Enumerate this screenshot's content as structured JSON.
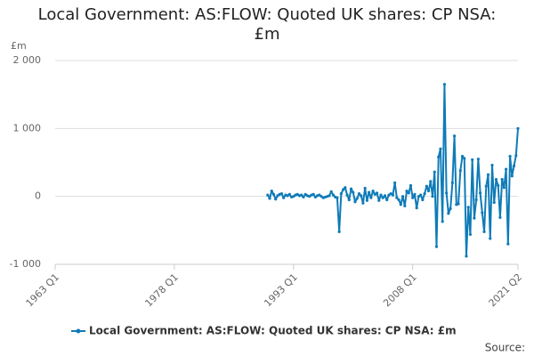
{
  "chart_data": {
    "type": "line",
    "title": "Local Government: AS:FLOW: Quoted UK shares: CP NSA: £m",
    "y_label": "£m",
    "source": "Source:",
    "x": [
      "1989 Q4",
      "1990 Q1",
      "1990 Q2",
      "1990 Q3",
      "1990 Q4",
      "1991 Q1",
      "1991 Q2",
      "1991 Q3",
      "1991 Q4",
      "1992 Q1",
      "1992 Q2",
      "1992 Q3",
      "1992 Q4",
      "1993 Q1",
      "1993 Q2",
      "1993 Q3",
      "1993 Q4",
      "1994 Q1",
      "1994 Q2",
      "1994 Q3",
      "1994 Q4",
      "1995 Q1",
      "1995 Q2",
      "1995 Q3",
      "1995 Q4",
      "1996 Q1",
      "1996 Q2",
      "1996 Q3",
      "1996 Q4",
      "1997 Q1",
      "1997 Q2",
      "1997 Q3",
      "1997 Q4",
      "1998 Q1",
      "1998 Q2",
      "1998 Q3",
      "1998 Q4",
      "1999 Q1",
      "1999 Q2",
      "1999 Q3",
      "1999 Q4",
      "2000 Q1",
      "2000 Q2",
      "2000 Q3",
      "2000 Q4",
      "2001 Q1",
      "2001 Q2",
      "2001 Q3",
      "2001 Q4",
      "2002 Q1",
      "2002 Q2",
      "2002 Q3",
      "2002 Q4",
      "2003 Q1",
      "2003 Q2",
      "2003 Q3",
      "2003 Q4",
      "2004 Q1",
      "2004 Q2",
      "2004 Q3",
      "2004 Q4",
      "2005 Q1",
      "2005 Q2",
      "2005 Q3",
      "2005 Q4",
      "2006 Q1",
      "2006 Q2",
      "2006 Q3",
      "2006 Q4",
      "2007 Q1",
      "2007 Q2",
      "2007 Q3",
      "2007 Q4",
      "2008 Q1",
      "2008 Q2",
      "2008 Q3",
      "2008 Q4",
      "2009 Q1",
      "2009 Q2",
      "2009 Q3",
      "2009 Q4",
      "2010 Q1",
      "2010 Q2",
      "2010 Q3",
      "2010 Q4",
      "2011 Q1",
      "2011 Q2",
      "2011 Q3",
      "2011 Q4",
      "2012 Q1",
      "2012 Q2",
      "2012 Q3",
      "2012 Q4",
      "2013 Q1",
      "2013 Q2",
      "2013 Q3",
      "2013 Q4",
      "2014 Q1",
      "2014 Q2",
      "2014 Q3",
      "2014 Q4",
      "2015 Q1",
      "2015 Q2",
      "2015 Q3",
      "2015 Q4",
      "2016 Q1",
      "2016 Q2",
      "2016 Q3",
      "2016 Q4",
      "2017 Q1",
      "2017 Q2",
      "2017 Q3",
      "2017 Q4",
      "2018 Q1",
      "2018 Q2",
      "2018 Q3",
      "2018 Q4",
      "2019 Q1",
      "2019 Q2",
      "2019 Q3",
      "2019 Q4",
      "2020 Q1",
      "2020 Q2",
      "2020 Q3",
      "2020 Q4",
      "2021 Q1",
      "2021 Q2"
    ],
    "series": [
      {
        "name": "Local Government: AS:FLOW: Quoted UK shares: CP NSA: £m",
        "color": "#0f7bb8",
        "values": [
          20,
          -30,
          80,
          30,
          -40,
          10,
          30,
          40,
          -20,
          20,
          10,
          30,
          -10,
          0,
          20,
          30,
          10,
          20,
          -10,
          30,
          10,
          0,
          20,
          30,
          -10,
          10,
          20,
          0,
          -20,
          -10,
          0,
          10,
          70,
          20,
          -10,
          -20,
          -520,
          40,
          100,
          130,
          20,
          -50,
          110,
          60,
          -80,
          -30,
          40,
          10,
          -100,
          120,
          -60,
          60,
          -20,
          80,
          30,
          50,
          -60,
          20,
          -20,
          10,
          -50,
          20,
          40,
          20,
          200,
          -20,
          -50,
          -120,
          0,
          -140,
          80,
          50,
          160,
          -20,
          30,
          -170,
          0,
          20,
          -50,
          40,
          150,
          80,
          220,
          0,
          360,
          -740,
          580,
          700,
          -370,
          1650,
          50,
          -250,
          -180,
          200,
          890,
          -120,
          -110,
          380,
          590,
          560,
          -880,
          -160,
          -560,
          540,
          -320,
          -50,
          550,
          50,
          -240,
          -520,
          150,
          320,
          -620,
          460,
          -90,
          250,
          160,
          -310,
          250,
          130,
          400,
          -700,
          590,
          300,
          450,
          600,
          1000
        ]
      }
    ],
    "xlim": [
      "1963 Q1",
      "2021 Q2"
    ],
    "xticks": [
      "1963 Q1",
      "1978 Q1",
      "1993 Q1",
      "2008 Q1",
      "2021 Q2"
    ],
    "ylim": [
      -1000,
      2000
    ],
    "yticks": [
      {
        "value": -1000,
        "label": "-1 000"
      },
      0,
      {
        "value": 1000,
        "label": "1 000"
      },
      {
        "value": 2000,
        "label": "2 000"
      }
    ],
    "grid": true,
    "legend": "bottom"
  }
}
